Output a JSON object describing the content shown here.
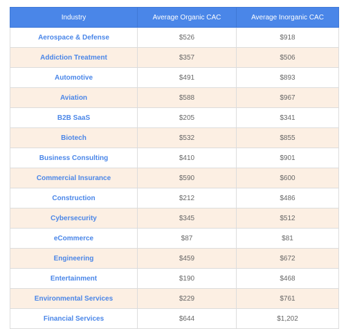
{
  "table": {
    "headers": [
      "Industry",
      "Average Organic CAC",
      "Average Inorganic CAC"
    ],
    "rows": [
      [
        "Aerospace & Defense",
        "$526",
        "$918"
      ],
      [
        "Addiction Treatment",
        "$357",
        "$506"
      ],
      [
        "Automotive",
        "$491",
        "$893"
      ],
      [
        "Aviation",
        "$588",
        "$967"
      ],
      [
        "B2B SaaS",
        "$205",
        "$341"
      ],
      [
        "Biotech",
        "$532",
        "$855"
      ],
      [
        "Business Consulting",
        "$410",
        "$901"
      ],
      [
        "Commercial Insurance",
        "$590",
        "$600"
      ],
      [
        "Construction",
        "$212",
        "$486"
      ],
      [
        "Cybersecurity",
        "$345",
        "$512"
      ],
      [
        "eCommerce",
        "$87",
        "$81"
      ],
      [
        "Engineering",
        "$459",
        "$672"
      ],
      [
        "Entertainment",
        "$190",
        "$468"
      ],
      [
        "Environmental Services",
        "$229",
        "$761"
      ],
      [
        "Financial Services",
        "$644",
        "$1,202"
      ]
    ]
  },
  "colors": {
    "header_bg": "#4a86e8",
    "header_text": "#ffffff",
    "industry_text": "#4a86e8",
    "value_text": "#666666",
    "alt_row_bg": "#fcefe3"
  }
}
